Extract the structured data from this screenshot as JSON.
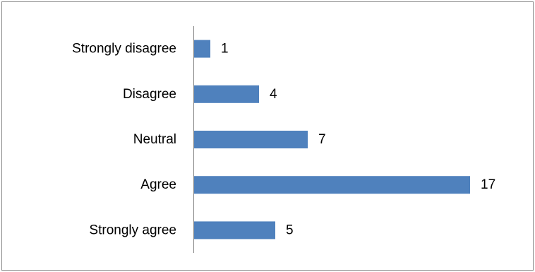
{
  "chart_data": {
    "type": "bar",
    "orientation": "horizontal",
    "categories": [
      "Strongly disagree",
      "Disagree",
      "Neutral",
      "Agree",
      "Strongly agree"
    ],
    "values": [
      1,
      4,
      7,
      17,
      5
    ],
    "data_labels": [
      "1",
      "4",
      "7",
      "17",
      "5"
    ],
    "title": "",
    "xlabel": "",
    "ylabel": "",
    "xlim": [
      0,
      17
    ],
    "grid": false,
    "legend": "none",
    "bar_color": "#4f81bd"
  }
}
